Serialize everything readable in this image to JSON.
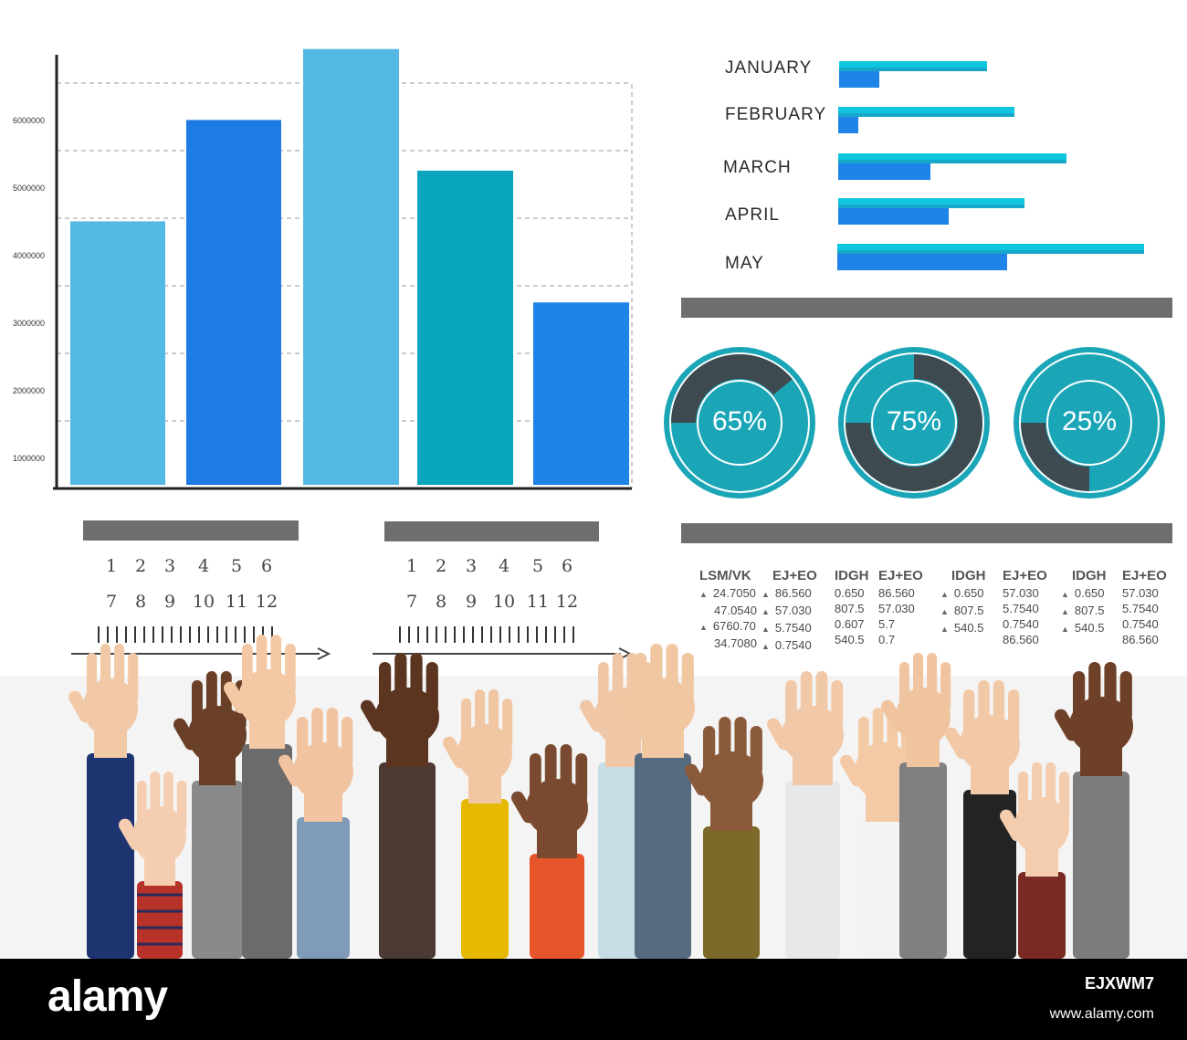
{
  "bar_chart": {
    "y_ticks": [
      "6000000",
      "5000000",
      "4000000",
      "3000000",
      "2000000",
      "1000000"
    ],
    "colors": [
      "#54b8e4",
      "#1e7be3",
      "#54b8e4",
      "#0aa6bd",
      "#1e84e8"
    ]
  },
  "chart_data": [
    {
      "type": "bar",
      "values": [
        3900000,
        5400000,
        6450000,
        4650000,
        2700000
      ],
      "ylim": [
        0,
        6500000
      ],
      "y_ticks": [
        "1000000",
        "2000000",
        "3000000",
        "4000000",
        "5000000",
        "6000000"
      ]
    },
    {
      "type": "bar",
      "orientation": "horizontal",
      "categories": [
        "JANUARY",
        "FEBRUARY",
        "MARCH",
        "APRIL",
        "MAY"
      ],
      "series": [
        {
          "values": [
            162,
            193,
            250,
            204,
            336
          ]
        },
        {
          "values": [
            44,
            22,
            101,
            121,
            186
          ]
        }
      ]
    }
  ],
  "months": [
    "JANUARY",
    "FEBRUARY",
    "MARCH",
    "APRIL",
    "MAY"
  ],
  "donuts": [
    {
      "label": "65%",
      "value": 0.65
    },
    {
      "label": "75%",
      "value": 0.75
    },
    {
      "label": "25%",
      "value": 0.25
    }
  ],
  "slider_numbers": {
    "row1": [
      "1",
      "2",
      "3",
      "4",
      "5",
      "6"
    ],
    "row2": [
      "7",
      "8",
      "9",
      "10",
      "11",
      "12"
    ]
  },
  "table": {
    "columns": [
      {
        "header": "LSM/VK",
        "rows": [
          "24.7050",
          "47.0540",
          "6760.70",
          "34.7080"
        ],
        "tri": [
          true,
          false,
          true,
          false
        ]
      },
      {
        "header": "EJ+EO",
        "rows": [
          "86.560",
          "57.030",
          "5.7540",
          "0.7540"
        ],
        "tri": [
          true,
          true,
          true,
          true
        ]
      },
      {
        "header": "IDGH",
        "rows": [
          "0.650",
          "807.5",
          "0.607",
          "540.5"
        ],
        "tri": [
          false,
          false,
          false,
          false
        ]
      },
      {
        "header": "EJ+EO",
        "rows": [
          "86.560",
          "57.030",
          "5.7",
          "0.7"
        ],
        "tri": [
          false,
          false,
          false,
          false
        ]
      },
      {
        "header": "IDGH",
        "rows": [
          "0.650",
          "",
          "807.5",
          "540.5"
        ],
        "tri": [
          true,
          false,
          true,
          true
        ]
      },
      {
        "header": "EJ+EO",
        "rows": [
          "57.030",
          "5.7540",
          "0.7540",
          "86.560"
        ],
        "tri": [
          false,
          false,
          false,
          false
        ]
      },
      {
        "header": "IDGH",
        "rows": [
          "0.650",
          "",
          "807.5",
          "540.5"
        ],
        "tri": [
          true,
          false,
          true,
          true
        ]
      },
      {
        "header": "EJ+EO",
        "rows": [
          "57.030",
          "5.7540",
          "0.7540",
          "86.560"
        ],
        "tri": [
          false,
          false,
          false,
          false
        ]
      }
    ]
  },
  "footer": {
    "brand": "alamy",
    "stock_id": "EJXWM7",
    "site": "www.alamy.com"
  },
  "colors": {
    "accent_teal": "#1ba6b8",
    "donut_dark": "#3f4a50",
    "hbar_top": "#0fc6df",
    "hbar_bottom": "#1e84e8",
    "divider_gray": "#6e6e6e"
  }
}
